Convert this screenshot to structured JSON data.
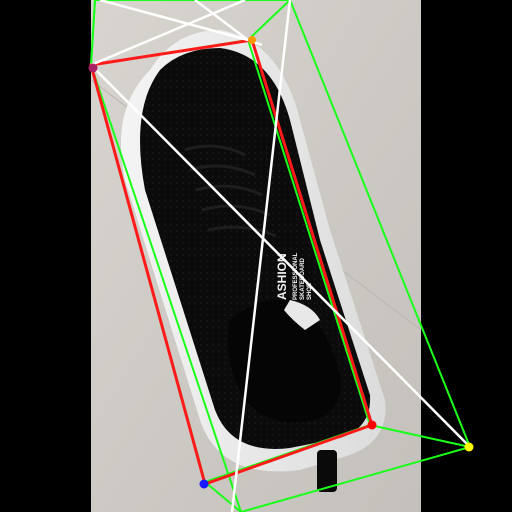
{
  "photo": {
    "subject": "black knit sneaker with white sole on light floor",
    "printed_text_lines": [
      "ASHION",
      "PROFESSIONAL",
      "SKATEBOARD",
      "SHOE"
    ]
  },
  "overlay": {
    "colors": {
      "red_box": "#ff1a1a",
      "green_box": "#1aff1a",
      "white_lines": "#ffffff",
      "keypoint_blue": "#1a1aff",
      "keypoint_yellow": "#ffff00",
      "keypoint_orange": "#ff9900",
      "keypoint_red": "#ff0000",
      "keypoint_purple": "#aa2266"
    }
  }
}
